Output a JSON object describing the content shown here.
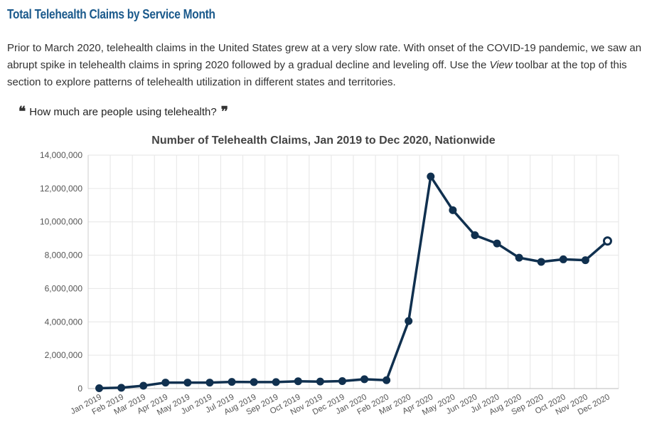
{
  "section": {
    "title": "Total Telehealth Claims by Service Month"
  },
  "intro": {
    "part1": "Prior to March 2020, telehealth claims in the United States grew at a very slow rate. With onset of the COVID-19 pandemic, we saw an abrupt spike in telehealth claims in spring 2020 followed by a gradual decline and leveling off. Use the ",
    "view": "View",
    "part2": " toolbar at the top of this section to explore patterns of telehealth utilization in different states and territories."
  },
  "quote": {
    "text": "How much are people using telehealth?"
  },
  "chart_data": {
    "type": "line",
    "title": "Number of Telehealth Claims, Jan 2019 to Dec 2020, Nationwide",
    "xlabel": "",
    "ylabel": "",
    "categories": [
      "Jan 2019",
      "Feb 2019",
      "Mar 2019",
      "Apr 2019",
      "May 2019",
      "Jun 2019",
      "Jul 2019",
      "Aug 2019",
      "Sep 2019",
      "Oct 2019",
      "Nov 2019",
      "Dec 2019",
      "Jan 2020",
      "Feb 2020",
      "Mar 2020",
      "Apr 2020",
      "May 2020",
      "Jun 2020",
      "Jul 2020",
      "Aug 2020",
      "Sep 2020",
      "Oct 2020",
      "Nov 2020",
      "Dec 2020"
    ],
    "series": [
      {
        "values": [
          20000,
          50000,
          170000,
          360000,
          360000,
          360000,
          400000,
          390000,
          390000,
          440000,
          420000,
          450000,
          560000,
          500000,
          4050000,
          12720000,
          10700000,
          9200000,
          8700000,
          7850000,
          7600000,
          7750000,
          7700000,
          8850000
        ],
        "color": "#10304f"
      }
    ],
    "ylim": [
      0,
      14000000
    ],
    "yticks": [
      "0",
      "2,000,000",
      "4,000,000",
      "6,000,000",
      "8,000,000",
      "10,000,000",
      "12,000,000",
      "14,000,000"
    ],
    "grid": true,
    "legend": "none"
  }
}
